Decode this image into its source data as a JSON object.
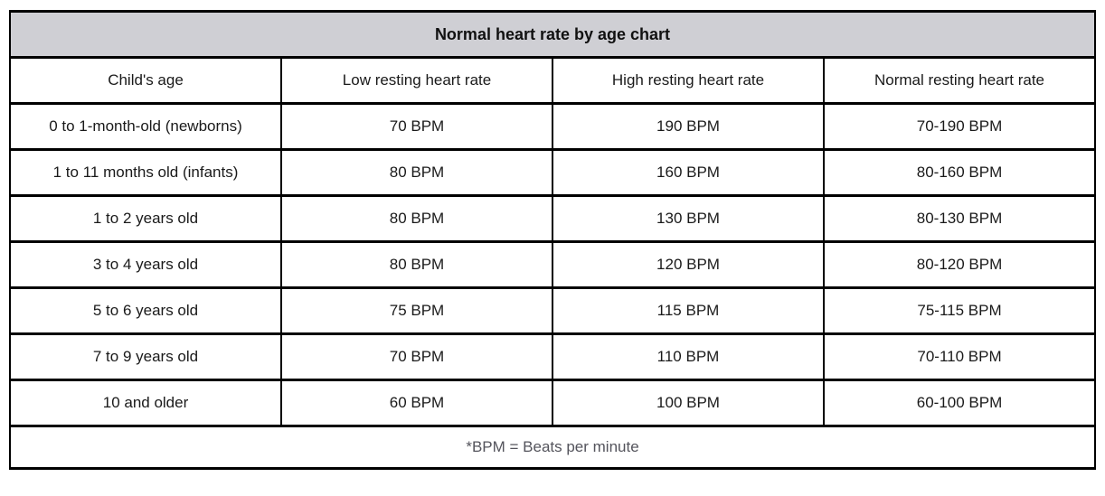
{
  "chart_data": {
    "type": "table",
    "title": "Normal heart rate by age chart",
    "columns": [
      "Child's age",
      "Low resting heart rate",
      "High resting heart rate",
      "Normal resting heart rate"
    ],
    "rows": [
      [
        "0 to 1-month-old (newborns)",
        "70 BPM",
        "190 BPM",
        "70-190 BPM"
      ],
      [
        "1 to 11 months old (infants)",
        "80 BPM",
        "160 BPM",
        "80-160 BPM"
      ],
      [
        "1 to 2 years old",
        "80 BPM",
        "130 BPM",
        "80-130 BPM"
      ],
      [
        "3 to 4 years old",
        "80 BPM",
        "120 BPM",
        "80-120 BPM"
      ],
      [
        "5 to 6 years old",
        "75 BPM",
        "115 BPM",
        "75-115 BPM"
      ],
      [
        "7 to 9 years old",
        "70 BPM",
        "110 BPM",
        "70-110 BPM"
      ],
      [
        "10 and older",
        "60 BPM",
        "100 BPM",
        "60-100 BPM"
      ]
    ],
    "footnote": "*BPM = Beats per minute",
    "layout": {
      "grid": "on",
      "column_count": 4,
      "row_count": 7
    }
  },
  "colors": {
    "title_background": "#cfcfd4",
    "border": "#000000",
    "body_text": "#1a1a1a",
    "footnote_text": "#54545c",
    "page_background": "#ffffff"
  }
}
